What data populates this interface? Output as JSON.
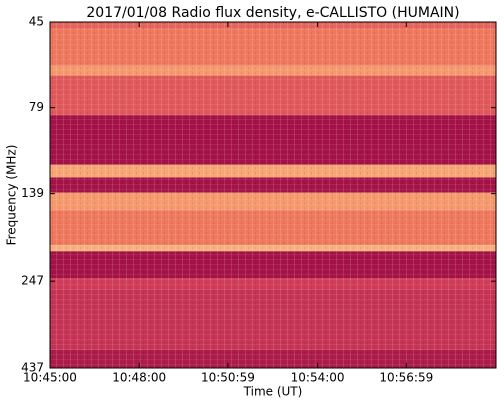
{
  "chart_data": {
    "type": "heatmap",
    "title": "2017/01/08  Radio flux density, e-CALLISTO (HUMAIN)",
    "x_label": "Time (UT)",
    "y_label": "Frequency (MHz)",
    "xlim": [
      38700,
      39600
    ],
    "xticks": [
      {
        "value": 38700,
        "label": "10:45:00"
      },
      {
        "value": 38880,
        "label": "10:48:00"
      },
      {
        "value": 39059,
        "label": "10:50:59"
      },
      {
        "value": 39240,
        "label": "10:54:00"
      },
      {
        "value": 39419,
        "label": "10:56:59"
      }
    ],
    "ylim": [
      45,
      437
    ],
    "yticks": [
      45,
      79,
      139,
      247,
      437
    ],
    "y_log": true,
    "y_inverted": true,
    "ybins": [
      45,
      47,
      60,
      64,
      83,
      115,
      125,
      138,
      155,
      195,
      203,
      242,
      261,
      388,
      437
    ],
    "levels": [
      0.5,
      0.6,
      0.75,
      0.45,
      0.05,
      0.8,
      0.05,
      0.75,
      0.6,
      0.85,
      0.05,
      0.3,
      0.25,
      0.1
    ],
    "colormap": [
      "#9b0a44",
      "#d6415a",
      "#f4845c",
      "#fbd69a"
    ]
  }
}
